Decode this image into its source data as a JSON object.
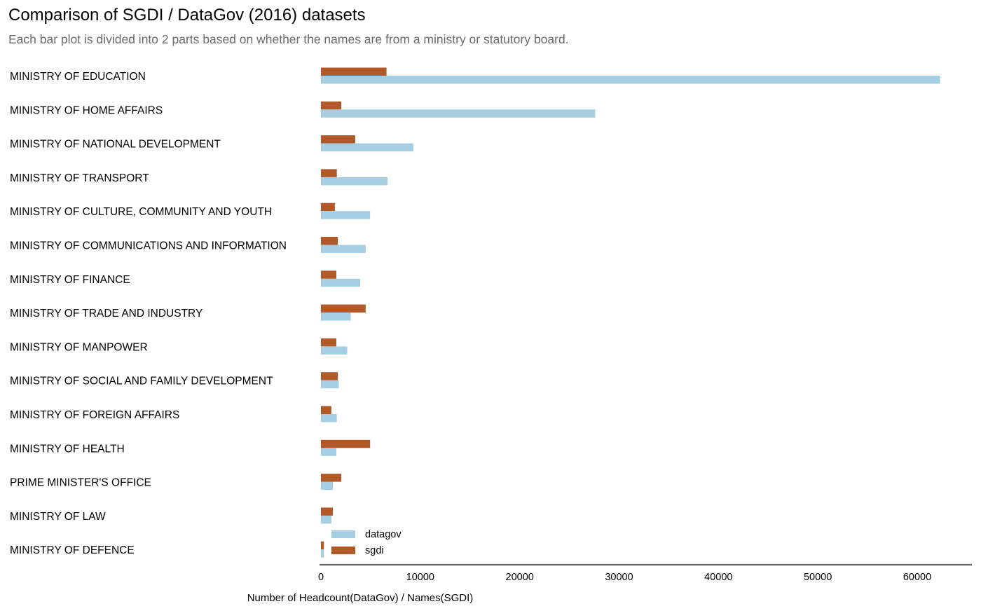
{
  "title": "Comparison of SGDI / DataGov (2016) datasets",
  "subtitle": "Each bar plot is divided into 2 parts based on whether the names are from a ministry or statutory board.",
  "colors": {
    "datagov": "#a6cee3",
    "sgdi": "#b15928",
    "axis": "#6b6b6b"
  },
  "chart_data": {
    "type": "bar",
    "orientation": "horizontal",
    "categories": [
      "MINISTRY OF EDUCATION",
      "MINISTRY OF HOME AFFAIRS",
      "MINISTRY OF NATIONAL DEVELOPMENT",
      "MINISTRY OF TRANSPORT",
      "MINISTRY OF CULTURE, COMMUNITY AND YOUTH",
      "MINISTRY OF COMMUNICATIONS AND INFORMATION",
      "MINISTRY OF FINANCE",
      "MINISTRY OF TRADE AND INDUSTRY",
      "MINISTRY OF MANPOWER",
      "MINISTRY OF SOCIAL AND FAMILY DEVELOPMENT",
      "MINISTRY OF FOREIGN AFFAIRS",
      "MINISTRY OF HEALTH",
      "PRIME MINISTER'S OFFICE",
      "MINISTRY OF LAW",
      "MINISTRY OF DEFENCE"
    ],
    "series": [
      {
        "name": "datagov",
        "values": [
          62300,
          27600,
          9300,
          6700,
          4950,
          4500,
          3950,
          3000,
          2650,
          1800,
          1600,
          1550,
          1200,
          1050,
          300
        ]
      },
      {
        "name": "sgdi",
        "values": [
          6600,
          2050,
          3450,
          1600,
          1400,
          1700,
          1550,
          4500,
          1550,
          1700,
          1050,
          4950,
          2050,
          1200,
          300
        ]
      }
    ],
    "xlabel": "Number of Headcount(DataGov) / Names(SGDI)",
    "ylabel": "",
    "xlim": [
      0,
      65500
    ],
    "xticks": [
      0,
      10000,
      20000,
      30000,
      40000,
      50000,
      60000
    ],
    "legend": {
      "placement": "bottom-left-of-plot",
      "entries": [
        "datagov",
        "sgdi"
      ]
    },
    "grid": false
  }
}
